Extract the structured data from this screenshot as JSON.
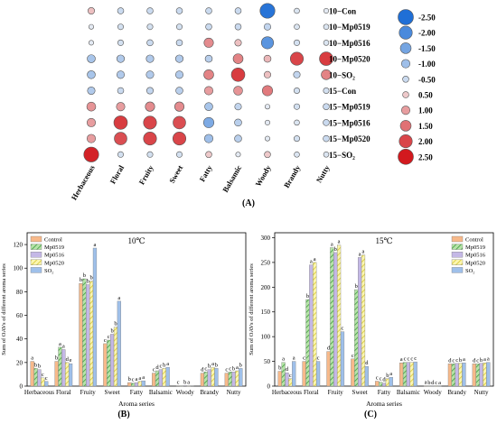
{
  "panels": {
    "A": "(A)",
    "B": "(B)",
    "C": "(C)"
  },
  "colors": {
    "negative_dark": "#1f6fd6",
    "neutral": "#f5f5f5",
    "positive_dark": "#d2191e",
    "control": "#f7b98a",
    "mp0519": "#7fc97f",
    "mp0516": "#c4b8e6",
    "mp0520": "#f6ef84",
    "so2": "#9fc0ea"
  },
  "chart_data": [
    {
      "type": "heatmap",
      "title": "",
      "columns": [
        "Herbaceous",
        "Floral",
        "Fruity",
        "Sweet",
        "Fatty",
        "Balsamic",
        "Woody",
        "Brandy",
        "Nutty"
      ],
      "rows": [
        "10−Con",
        "10−Mp0519",
        "10−Mp0516",
        "10−Mp0520",
        "10−SO₂",
        "15−Con",
        "15−Mp0519",
        "15−Mp0516",
        "15−Mp0520",
        "15−SO₂"
      ],
      "values": [
        [
          0.6,
          -0.5,
          -0.5,
          -0.5,
          -0.5,
          -0.5,
          -2.4,
          -0.3,
          -0.2
        ],
        [
          -0.2,
          -0.4,
          -0.4,
          -0.4,
          -0.5,
          -0.5,
          -0.6,
          -0.3,
          -0.3
        ],
        [
          -0.2,
          -0.4,
          -0.5,
          -0.5,
          1.2,
          0.6,
          -1.8,
          -0.4,
          -0.3
        ],
        [
          -0.9,
          -0.8,
          -0.8,
          -0.8,
          -0.7,
          1.3,
          0.7,
          2.0,
          2.1
        ],
        [
          -0.9,
          -0.8,
          -0.8,
          -0.8,
          1.3,
          2.1,
          0.6,
          -0.6,
          1.3
        ],
        [
          -0.8,
          -0.5,
          -0.6,
          -0.7,
          1.0,
          1.1,
          1.4,
          -0.4,
          -0.4
        ],
        [
          1.1,
          1.0,
          1.2,
          1.2,
          -0.9,
          -0.6,
          -0.2,
          -0.4,
          -0.5
        ],
        [
          1.0,
          2.1,
          2.0,
          1.9,
          -1.4,
          -0.7,
          -0.2,
          -0.3,
          -0.5
        ],
        [
          1.0,
          1.9,
          2.0,
          2.0,
          -1.0,
          -0.7,
          -0.2,
          -0.4,
          -0.5
        ],
        [
          2.4,
          -0.4,
          -0.4,
          -0.4,
          0.5,
          -0.2,
          0.5,
          -0.3,
          -0.3
        ]
      ],
      "legend": {
        "values": [
          -2.5,
          -2.0,
          -1.5,
          -1.0,
          -0.5,
          0.5,
          1.0,
          1.5,
          2.0,
          2.5
        ],
        "labels": [
          "-2.50",
          "-2.00",
          "-1.50",
          "-1.00",
          "-0.50",
          "0.50",
          "1.00",
          "1.50",
          "2.00",
          "2.50"
        ],
        "placement": "right"
      }
    },
    {
      "type": "bar",
      "title": "10℃",
      "xlabel": "Aroma series",
      "ylabel": "Sum of OAVs of different aroma series",
      "ylim": [
        0,
        130
      ],
      "yticks": [
        "0",
        "20",
        "40",
        "60",
        "80",
        "100",
        "120"
      ],
      "ytick_values": [
        0,
        20,
        40,
        60,
        80,
        100,
        120
      ],
      "categories": [
        "Herbaceous",
        "Floral",
        "Fruity",
        "Sweet",
        "Fatty",
        "Balsamic",
        "Woody",
        "Brandy",
        "Nutty"
      ],
      "legend_position": "top-left",
      "series": [
        {
          "name": "Control",
          "values": [
            21,
            21,
            87,
            36,
            3,
            11,
            0.3,
            11,
            11
          ],
          "letters": [
            "a",
            "b",
            "b",
            "c",
            "b",
            "c",
            "c",
            "d",
            "c"
          ]
        },
        {
          "name": "Mp0519",
          "values": [
            15,
            33,
            91,
            39,
            2.5,
            13,
            0.2,
            12,
            12
          ],
          "letters": [
            "b",
            "a",
            "b",
            "c",
            "c",
            "d",
            "",
            "c",
            "c"
          ]
        },
        {
          "name": "Mp0516",
          "values": [
            14,
            31,
            86,
            44,
            3,
            14,
            0.4,
            14,
            12
          ],
          "letters": [
            "b",
            "a",
            "b",
            "b",
            "a",
            "c",
            "b",
            "b",
            "b"
          ]
        },
        {
          "name": "Mp0520",
          "values": [
            7,
            20,
            89,
            50,
            4,
            15,
            0.2,
            16,
            13
          ],
          "letters": [
            "c",
            "d",
            "b",
            "b",
            "a",
            "b",
            "a",
            "a",
            "a"
          ]
        },
        {
          "name": "SO₂",
          "values": [
            4,
            19,
            117,
            72,
            4.5,
            16,
            0.3,
            15,
            15
          ],
          "letters": [
            "c",
            "e",
            "a",
            "a",
            "a",
            "a",
            "",
            "b",
            "b"
          ]
        }
      ]
    },
    {
      "type": "bar",
      "title": "15℃",
      "xlabel": "Aroma series",
      "ylabel": "Sum of OAVs of different aroma series",
      "ylim": [
        0,
        310
      ],
      "yticks": [
        "0",
        "50",
        "100",
        "150",
        "200",
        "250",
        "300"
      ],
      "ytick_values": [
        0,
        50,
        100,
        150,
        200,
        250,
        300
      ],
      "categories": [
        "Herbaceous",
        "Floral",
        "Fruity",
        "Sweet",
        "Fatty",
        "Balsamic",
        "Woody",
        "Brandy",
        "Nutty"
      ],
      "legend_position": "top-right",
      "series": [
        {
          "name": "Control",
          "values": [
            30,
            50,
            70,
            55,
            10,
            47,
            0.5,
            45,
            45
          ],
          "letters": [
            "b",
            "c",
            "d",
            "c",
            "c",
            "a",
            "a",
            "d",
            "d"
          ]
        },
        {
          "name": "Mp0519",
          "values": [
            48,
            175,
            280,
            195,
            8,
            48,
            0.4,
            45,
            45
          ],
          "letters": [
            "a",
            "b",
            "a",
            "b",
            "c",
            "c",
            "b",
            "c",
            "c"
          ]
        },
        {
          "name": "Mp0516",
          "values": [
            27,
            245,
            270,
            260,
            6,
            48,
            0.4,
            46,
            46
          ],
          "letters": [
            "d",
            "a",
            "b",
            "a",
            "d",
            "c",
            "d",
            "c",
            "b"
          ]
        },
        {
          "name": "Mp0520",
          "values": [
            15,
            250,
            285,
            265,
            15,
            48,
            0.3,
            46,
            47
          ],
          "letters": [
            "c",
            "a",
            "a",
            "a",
            "b",
            "c",
            "c",
            "b",
            "a"
          ]
        },
        {
          "name": "SO₂",
          "values": [
            50,
            50,
            110,
            40,
            18,
            49,
            0.4,
            47,
            48
          ],
          "letters": [
            "a",
            "c",
            "c",
            "d",
            "a",
            "c",
            "a",
            "a",
            "a"
          ]
        }
      ]
    }
  ]
}
